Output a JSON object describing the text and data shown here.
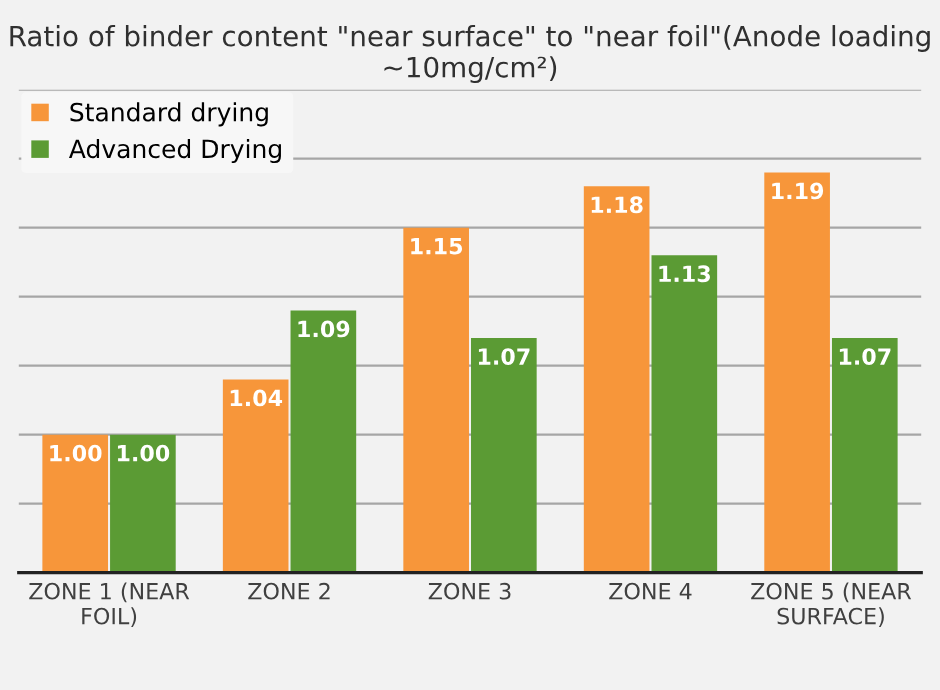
{
  "chart_data": {
    "type": "bar",
    "title": "Ratio of binder content \"near surface\" to \"near foil\"(Anode loading ~10mg/cm²)",
    "categories": [
      "ZONE 1 (NEAR FOIL)",
      "ZONE 2",
      "ZONE 3",
      "ZONE 4",
      "ZONE 5 (NEAR SURFACE)"
    ],
    "series": [
      {
        "name": "Standard drying",
        "color": "#f7963a",
        "values": [
          1.0,
          1.04,
          1.15,
          1.18,
          1.19
        ],
        "value_labels": [
          "1.00",
          "1.04",
          "1.15",
          "1.18",
          "1.19"
        ]
      },
      {
        "name": "Advanced Drying",
        "color": "#5b9b34",
        "values": [
          1.0,
          1.09,
          1.07,
          1.13,
          1.07
        ],
        "value_labels": [
          "1.00",
          "1.09",
          "1.07",
          "1.13",
          "1.07"
        ]
      }
    ],
    "ylim": [
      0.9,
      1.25
    ],
    "yticks": [
      {
        "value": 0.9,
        "label": null
      },
      {
        "value": 0.95,
        "label": null
      },
      {
        "value": 1.0,
        "label": null
      },
      {
        "value": 1.05,
        "label": null
      },
      {
        "value": 1.1,
        "label": null
      },
      {
        "value": 1.15,
        "label": null
      },
      {
        "value": 1.2,
        "label": null
      },
      {
        "value": 1.25,
        "label": null
      }
    ],
    "tick_labels": "x",
    "grid": "y",
    "legend": "top left"
  }
}
